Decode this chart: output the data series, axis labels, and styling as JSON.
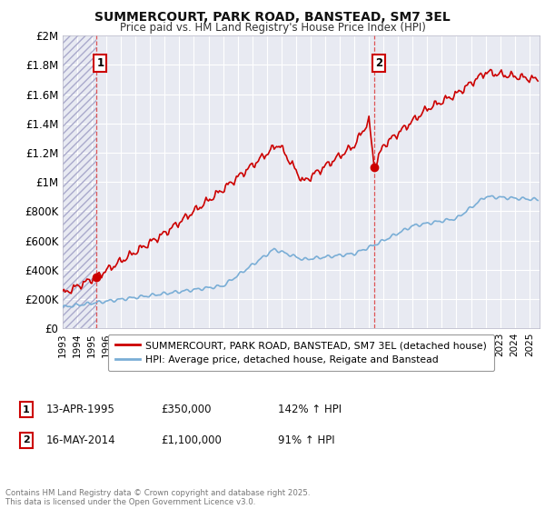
{
  "title": "SUMMERCOURT, PARK ROAD, BANSTEAD, SM7 3EL",
  "subtitle": "Price paid vs. HM Land Registry's House Price Index (HPI)",
  "ylim": [
    0,
    2000000
  ],
  "xlim_start": 1993.0,
  "xlim_end": 2025.7,
  "background_color": "#ffffff",
  "plot_bg_color": "#e8eaf2",
  "grid_color": "#ffffff",
  "sale1_date": 1995.28,
  "sale1_price": 350000,
  "sale1_label": "1",
  "sale1_date_str": "13-APR-1995",
  "sale1_pct": "142% ↑ HPI",
  "sale2_date": 2014.37,
  "sale2_price": 1100000,
  "sale2_label": "2",
  "sale2_date_str": "16-MAY-2014",
  "sale2_pct": "91% ↑ HPI",
  "legend_house_label": "SUMMERCOURT, PARK ROAD, BANSTEAD, SM7 3EL (detached house)",
  "legend_hpi_label": "HPI: Average price, detached house, Reigate and Banstead",
  "footnote": "Contains HM Land Registry data © Crown copyright and database right 2025.\nThis data is licensed under the Open Government Licence v3.0.",
  "house_color": "#cc0000",
  "hpi_color": "#7aaed6",
  "yticks": [
    0,
    200000,
    400000,
    600000,
    800000,
    1000000,
    1200000,
    1400000,
    1600000,
    1800000,
    2000000
  ],
  "ytick_labels": [
    "£0",
    "£200K",
    "£400K",
    "£600K",
    "£800K",
    "£1M",
    "£1.2M",
    "£1.4M",
    "£1.6M",
    "£1.8M",
    "£2M"
  ]
}
